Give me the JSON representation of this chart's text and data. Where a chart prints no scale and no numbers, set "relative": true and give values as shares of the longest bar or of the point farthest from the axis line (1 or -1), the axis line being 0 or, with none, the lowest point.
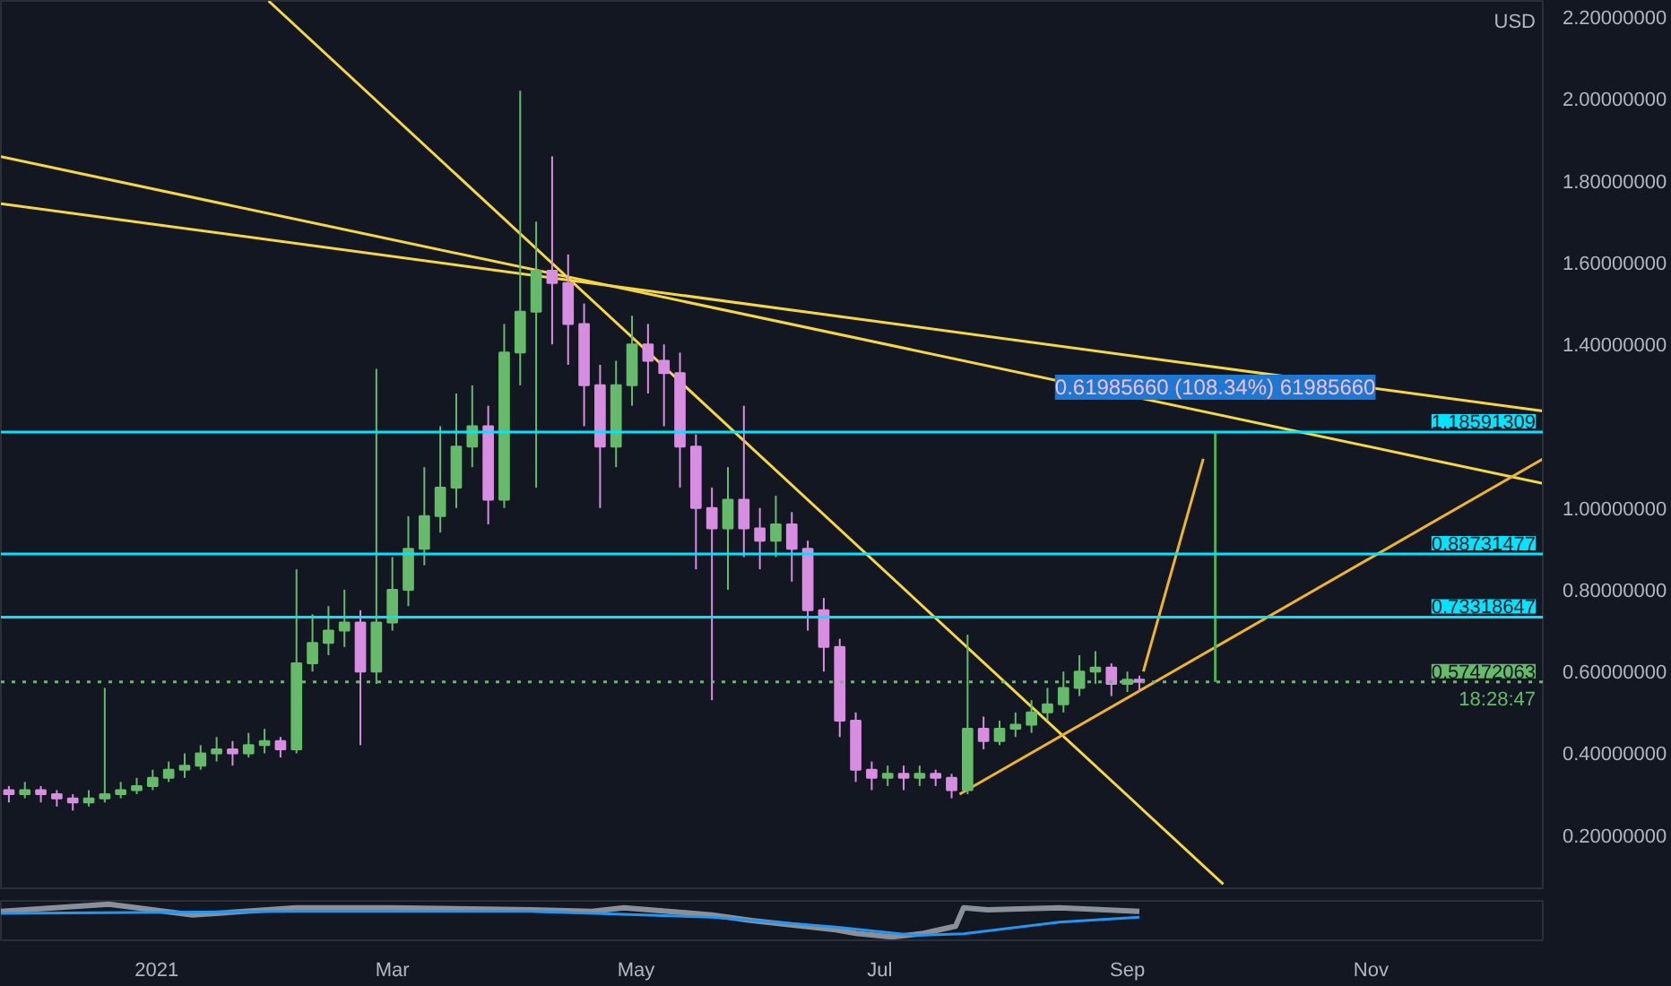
{
  "chart_data": [
    {
      "type": "candlestick",
      "tick_labels": "y",
      "grid": false,
      "x": [
        "2020-11-25",
        "2020-11-29",
        "2020-12-03",
        "2020-12-07",
        "2020-12-11",
        "2020-12-15",
        "2020-12-19",
        "2020-12-23",
        "2020-12-27",
        "2020-12-31",
        "2021-01-04",
        "2021-01-08",
        "2021-01-12",
        "2021-01-16",
        "2021-01-20",
        "2021-01-24",
        "2021-01-28",
        "2021-02-01",
        "2021-02-05",
        "2021-02-09",
        "2021-02-13",
        "2021-02-17",
        "2021-02-21",
        "2021-02-25",
        "2021-03-01",
        "2021-03-05",
        "2021-03-09",
        "2021-03-13",
        "2021-03-17",
        "2021-03-21",
        "2021-03-25",
        "2021-03-29",
        "2021-04-02",
        "2021-04-06",
        "2021-04-10",
        "2021-04-14",
        "2021-04-18",
        "2021-04-22",
        "2021-04-26",
        "2021-04-30",
        "2021-05-04",
        "2021-05-08",
        "2021-05-12",
        "2021-05-16",
        "2021-05-20",
        "2021-05-24",
        "2021-05-28",
        "2021-06-01",
        "2021-06-05",
        "2021-06-09",
        "2021-06-13",
        "2021-06-17",
        "2021-06-21",
        "2021-06-25",
        "2021-06-29",
        "2021-07-03",
        "2021-07-07",
        "2021-07-11",
        "2021-07-15",
        "2021-07-19",
        "2021-07-23",
        "2021-07-27",
        "2021-07-31",
        "2021-08-04",
        "2021-08-08",
        "2021-08-12",
        "2021-08-16",
        "2021-08-20",
        "2021-08-24",
        "2021-08-28",
        "2021-09-01",
        "2021-09-04"
      ],
      "ohlc": [
        [
          0.31,
          0.32,
          0.28,
          0.3
        ],
        [
          0.3,
          0.33,
          0.29,
          0.31
        ],
        [
          0.31,
          0.32,
          0.28,
          0.3
        ],
        [
          0.3,
          0.31,
          0.27,
          0.29
        ],
        [
          0.29,
          0.3,
          0.26,
          0.28
        ],
        [
          0.28,
          0.31,
          0.27,
          0.29
        ],
        [
          0.29,
          0.56,
          0.28,
          0.3
        ],
        [
          0.3,
          0.33,
          0.29,
          0.31
        ],
        [
          0.31,
          0.34,
          0.3,
          0.32
        ],
        [
          0.32,
          0.36,
          0.31,
          0.34
        ],
        [
          0.34,
          0.38,
          0.33,
          0.36
        ],
        [
          0.36,
          0.4,
          0.34,
          0.37
        ],
        [
          0.37,
          0.42,
          0.36,
          0.4
        ],
        [
          0.4,
          0.44,
          0.38,
          0.41
        ],
        [
          0.41,
          0.43,
          0.37,
          0.4
        ],
        [
          0.4,
          0.45,
          0.39,
          0.42
        ],
        [
          0.42,
          0.46,
          0.4,
          0.43
        ],
        [
          0.43,
          0.44,
          0.39,
          0.41
        ],
        [
          0.41,
          0.85,
          0.4,
          0.62
        ],
        [
          0.62,
          0.74,
          0.6,
          0.67
        ],
        [
          0.67,
          0.76,
          0.64,
          0.7
        ],
        [
          0.7,
          0.8,
          0.66,
          0.72
        ],
        [
          0.72,
          0.75,
          0.42,
          0.6
        ],
        [
          0.6,
          1.34,
          0.57,
          0.72
        ],
        [
          0.72,
          0.88,
          0.7,
          0.8
        ],
        [
          0.8,
          0.98,
          0.76,
          0.9
        ],
        [
          0.9,
          1.1,
          0.86,
          0.98
        ],
        [
          0.98,
          1.2,
          0.94,
          1.05
        ],
        [
          1.05,
          1.28,
          1.0,
          1.15
        ],
        [
          1.15,
          1.3,
          1.1,
          1.2
        ],
        [
          1.2,
          1.25,
          0.96,
          1.02
        ],
        [
          1.02,
          1.45,
          1.0,
          1.38
        ],
        [
          1.38,
          2.02,
          1.3,
          1.48
        ],
        [
          1.48,
          1.7,
          1.05,
          1.58
        ],
        [
          1.58,
          1.86,
          1.4,
          1.55
        ],
        [
          1.55,
          1.62,
          1.35,
          1.45
        ],
        [
          1.45,
          1.5,
          1.2,
          1.3
        ],
        [
          1.3,
          1.35,
          1.0,
          1.15
        ],
        [
          1.15,
          1.36,
          1.1,
          1.3
        ],
        [
          1.3,
          1.47,
          1.25,
          1.4
        ],
        [
          1.4,
          1.45,
          1.28,
          1.36
        ],
        [
          1.36,
          1.4,
          1.2,
          1.33
        ],
        [
          1.33,
          1.38,
          1.05,
          1.15
        ],
        [
          1.15,
          1.18,
          0.85,
          1.0
        ],
        [
          1.0,
          1.05,
          0.53,
          0.95
        ],
        [
          0.95,
          1.1,
          0.8,
          1.02
        ],
        [
          1.02,
          1.25,
          0.88,
          0.95
        ],
        [
          0.95,
          1.0,
          0.85,
          0.92
        ],
        [
          0.92,
          1.03,
          0.88,
          0.96
        ],
        [
          0.96,
          0.99,
          0.82,
          0.9
        ],
        [
          0.9,
          0.92,
          0.7,
          0.75
        ],
        [
          0.75,
          0.78,
          0.6,
          0.66
        ],
        [
          0.66,
          0.68,
          0.44,
          0.48
        ],
        [
          0.48,
          0.5,
          0.33,
          0.36
        ],
        [
          0.36,
          0.38,
          0.31,
          0.34
        ],
        [
          0.34,
          0.37,
          0.32,
          0.35
        ],
        [
          0.35,
          0.37,
          0.31,
          0.34
        ],
        [
          0.34,
          0.37,
          0.32,
          0.35
        ],
        [
          0.35,
          0.36,
          0.32,
          0.34
        ],
        [
          0.34,
          0.35,
          0.29,
          0.31
        ],
        [
          0.31,
          0.69,
          0.3,
          0.46
        ],
        [
          0.46,
          0.49,
          0.41,
          0.43
        ],
        [
          0.43,
          0.48,
          0.42,
          0.46
        ],
        [
          0.46,
          0.5,
          0.44,
          0.47
        ],
        [
          0.47,
          0.53,
          0.45,
          0.5
        ],
        [
          0.5,
          0.56,
          0.48,
          0.52
        ],
        [
          0.52,
          0.6,
          0.5,
          0.56
        ],
        [
          0.56,
          0.64,
          0.54,
          0.6
        ],
        [
          0.6,
          0.65,
          0.57,
          0.61
        ],
        [
          0.61,
          0.62,
          0.54,
          0.57
        ],
        [
          0.57,
          0.6,
          0.55,
          0.58
        ],
        [
          0.58,
          0.59,
          0.55,
          0.5747
        ]
      ],
      "colors": [
        "#d78ee0",
        "#66bb6a",
        "#d78ee0",
        "#d78ee0",
        "#d78ee0",
        "#66bb6a",
        "#66bb6a",
        "#66bb6a",
        "#66bb6a",
        "#66bb6a",
        "#66bb6a",
        "#66bb6a",
        "#66bb6a",
        "#66bb6a",
        "#d78ee0",
        "#66bb6a",
        "#66bb6a",
        "#d78ee0",
        "#66bb6a",
        "#66bb6a",
        "#66bb6a",
        "#66bb6a",
        "#d78ee0",
        "#66bb6a",
        "#66bb6a",
        "#66bb6a",
        "#66bb6a",
        "#66bb6a",
        "#66bb6a",
        "#66bb6a",
        "#d78ee0",
        "#66bb6a",
        "#66bb6a",
        "#66bb6a",
        "#d78ee0",
        "#d78ee0",
        "#d78ee0",
        "#d78ee0",
        "#66bb6a",
        "#66bb6a",
        "#d78ee0",
        "#d78ee0",
        "#d78ee0",
        "#d78ee0",
        "#d78ee0",
        "#66bb6a",
        "#d78ee0",
        "#d78ee0",
        "#66bb6a",
        "#d78ee0",
        "#d78ee0",
        "#d78ee0",
        "#d78ee0",
        "#d78ee0",
        "#d78ee0",
        "#66bb6a",
        "#d78ee0",
        "#66bb6a",
        "#d78ee0",
        "#d78ee0",
        "#66bb6a",
        "#d78ee0",
        "#66bb6a",
        "#66bb6a",
        "#66bb6a",
        "#66bb6a",
        "#66bb6a",
        "#66bb6a",
        "#66bb6a",
        "#d78ee0",
        "#66bb6a",
        "#d78ee0"
      ],
      "xlim": [
        "2020-11-23",
        "2021-12-14"
      ],
      "ylim": [
        0.07,
        2.24
      ],
      "yticks": [
        {
          "value": 0.2,
          "label": "0.20000000"
        },
        {
          "value": 0.4,
          "label": "0.40000000"
        },
        {
          "value": 0.6,
          "label": "0.60000000"
        },
        {
          "value": 0.8,
          "label": "0.80000000"
        },
        {
          "value": 1.0,
          "label": "1.00000000"
        },
        {
          "value": 1.4,
          "label": "1.40000000"
        },
        {
          "value": 1.6,
          "label": "1.60000000"
        },
        {
          "value": 1.8,
          "label": "1.80000000"
        },
        {
          "value": 2.0,
          "label": "2.00000000"
        },
        {
          "value": 2.2,
          "label": "2.20000000"
        }
      ],
      "series": [
        {
          "type": "line",
          "color": "#f5d742",
          "x": [
            "2020-11-23",
            "2021-12-14"
          ],
          "values": [
            1.744,
            1.237
          ]
        },
        {
          "type": "line",
          "color": "#f5d742",
          "x": [
            "2020-11-23",
            "2021-12-14"
          ],
          "values": [
            1.859,
            1.06
          ]
        },
        {
          "type": "line",
          "color": "#f5d742",
          "x": [
            "2021-01-29",
            "2021-09-25"
          ],
          "values": [
            2.24,
            0.08
          ]
        },
        {
          "type": "line",
          "color": "#f0b429",
          "x": [
            "2021-07-21",
            "2021-12-14"
          ],
          "values": [
            0.3,
            1.12
          ]
        },
        {
          "type": "line",
          "color": "#f0b429",
          "x": [
            "2021-09-05",
            "2021-09-20"
          ],
          "values": [
            0.6,
            1.12
          ]
        },
        {
          "type": "line",
          "color": "#4caf50",
          "x": [
            "2021-09-23",
            "2021-09-23"
          ],
          "values": [
            0.5747,
            1.1859
          ]
        }
      ],
      "ref_lines": [
        {
          "axis": "y",
          "value": 1.18591309,
          "label": "1.18591309",
          "color": "#00e5ff"
        },
        {
          "axis": "y",
          "value": 0.88731477,
          "label": "0.88731477",
          "color": "#00e5ff"
        },
        {
          "axis": "y",
          "value": 0.73318647,
          "label": "0.73318647",
          "color": "#00e5ff"
        },
        {
          "axis": "y",
          "value": 0.57472063,
          "label": "0.57472063",
          "color": "#66bb6a",
          "line_style": "dotted"
        }
      ],
      "annotations": [
        "0.61985660 (108.34%) 61985660",
        "USD",
        "18:28:47"
      ]
    },
    {
      "type": "line",
      "relative": true,
      "tick_labels": "x",
      "grid": false,
      "xlim": [
        "2020-11-23",
        "2021-12-14"
      ],
      "xticks": [
        {
          "value": "2021-01-01",
          "label": "2021"
        },
        {
          "value": "2021-03-01",
          "label": "Mar"
        },
        {
          "value": "2021-05-01",
          "label": "May"
        },
        {
          "value": "2021-07-01",
          "label": "Jul"
        },
        {
          "value": "2021-09-01",
          "label": "Sep"
        },
        {
          "value": "2021-11-01",
          "label": "Nov"
        }
      ],
      "series": [
        {
          "color": "#8a9099",
          "x": [
            "2020-11-23",
            "2020-12-20",
            "2021-01-10",
            "2021-02-05",
            "2021-02-28",
            "2021-04-05",
            "2021-04-20",
            "2021-04-28",
            "2021-05-20",
            "2021-05-30",
            "2021-06-20",
            "2021-06-25",
            "2021-07-04",
            "2021-07-12",
            "2021-07-20",
            "2021-07-22",
            "2021-07-28",
            "2021-08-15",
            "2021-09-04"
          ],
          "values": [
            0.78,
            1,
            0.67,
            0.89,
            0.89,
            0.83,
            0.78,
            0.89,
            0.67,
            0.5,
            0.22,
            0.11,
            0,
            0.11,
            0.33,
            0.89,
            0.83,
            0.89,
            0.78
          ]
        },
        {
          "color": "#2196f3",
          "x": [
            "2020-11-23",
            "2021-02-05",
            "2021-04-05",
            "2021-05-20",
            "2021-06-20",
            "2021-07-10",
            "2021-07-22",
            "2021-08-15",
            "2021-09-04"
          ],
          "values": [
            0.72,
            0.78,
            0.78,
            0.6,
            0.3,
            0.05,
            0.1,
            0.45,
            0.6
          ]
        }
      ]
    }
  ]
}
